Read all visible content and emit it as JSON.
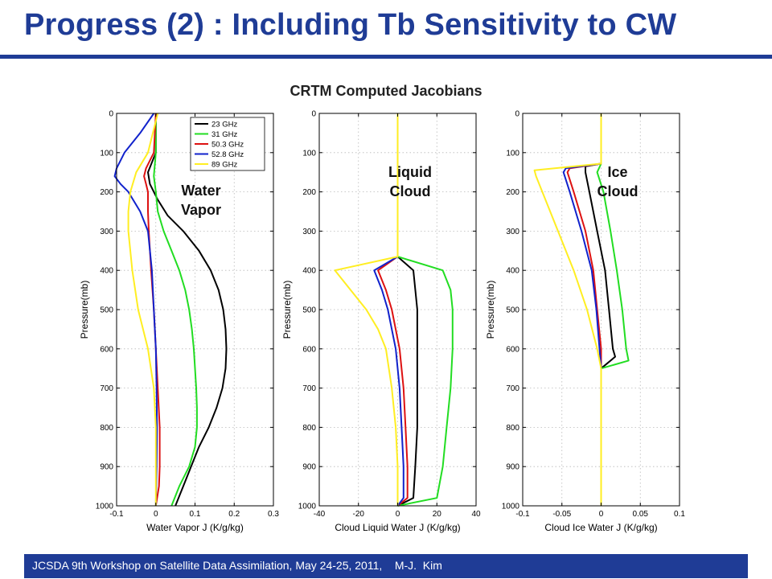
{
  "slide": {
    "title": "Progress (2) : Including Tb Sensitivity to CW",
    "figure_title": "CRTM Computed Jacobians",
    "footer": "JCSDA 9th Workshop on Satellite Data Assimilation, May 24-25, 2011,    M-J.  Kim"
  },
  "series_colors": {
    "23 GHz": "#000000",
    "31 GHz": "#22dd22",
    "50.3 GHz": "#dd1111",
    "52.8 GHz": "#1122cc",
    "89 GHz": "#ffee22"
  },
  "chart_data": [
    {
      "type": "line",
      "annotation": "Water\nVapor",
      "xlabel": "Water Vapor J (K/g/kg)",
      "ylabel": "Pressure(mb)",
      "xlim": [
        -0.1,
        0.3
      ],
      "ylim": [
        1000,
        0
      ],
      "xticks": [
        -0.1,
        0,
        0.1,
        0.2,
        0.3
      ],
      "xtick_labels": [
        "-0.1",
        "0",
        "0.1",
        "0.2",
        "0.3"
      ],
      "yticks": [
        0,
        100,
        200,
        300,
        400,
        500,
        600,
        700,
        800,
        900,
        1000
      ],
      "grid": true,
      "legend": "top-right",
      "series": [
        {
          "name": "23 GHz",
          "y": [
            0,
            100,
            150,
            180,
            220,
            260,
            300,
            350,
            400,
            450,
            500,
            550,
            600,
            650,
            700,
            750,
            800,
            850,
            900,
            950,
            1000
          ],
          "x": [
            0.0,
            0.0,
            -0.02,
            -0.015,
            0.005,
            0.03,
            0.07,
            0.11,
            0.14,
            0.16,
            0.172,
            0.178,
            0.18,
            0.178,
            0.17,
            0.155,
            0.135,
            0.11,
            0.09,
            0.07,
            0.05
          ]
        },
        {
          "name": "31 GHz",
          "y": [
            0,
            100,
            160,
            200,
            250,
            300,
            350,
            400,
            450,
            500,
            550,
            600,
            650,
            700,
            750,
            800,
            850,
            900,
            950,
            1000
          ],
          "x": [
            0.0,
            0.0,
            -0.005,
            0.0,
            0.005,
            0.02,
            0.04,
            0.06,
            0.075,
            0.085,
            0.092,
            0.097,
            0.1,
            0.103,
            0.105,
            0.105,
            0.1,
            0.085,
            0.06,
            0.04
          ]
        },
        {
          "name": "50.3 GHz",
          "y": [
            0,
            100,
            140,
            160,
            180,
            200,
            250,
            300,
            400,
            500,
            600,
            700,
            800,
            900,
            950,
            1000
          ],
          "x": [
            0.0,
            -0.005,
            -0.025,
            -0.03,
            -0.025,
            -0.02,
            -0.02,
            -0.018,
            -0.012,
            -0.005,
            0.0,
            0.005,
            0.01,
            0.01,
            0.008,
            0.0
          ]
        },
        {
          "name": "52.8 GHz",
          "y": [
            0,
            50,
            100,
            140,
            160,
            180,
            200,
            250,
            300,
            400,
            500,
            600,
            700,
            800,
            900,
            1000
          ],
          "x": [
            -0.005,
            -0.04,
            -0.08,
            -0.1,
            -0.105,
            -0.09,
            -0.07,
            -0.04,
            -0.02,
            -0.01,
            -0.005,
            0.0,
            0.002,
            0.003,
            0.002,
            0.0
          ]
        },
        {
          "name": "89 GHz",
          "y": [
            0,
            100,
            150,
            200,
            250,
            300,
            400,
            500,
            600,
            700,
            800,
            900,
            1000
          ],
          "x": [
            0.005,
            -0.02,
            -0.05,
            -0.065,
            -0.07,
            -0.07,
            -0.06,
            -0.045,
            -0.02,
            -0.005,
            0.0,
            0.0,
            0.0
          ]
        }
      ],
      "legend_entries": [
        "23 GHz",
        "31 GHz",
        "50.3 GHz",
        "52.8 GHz",
        "89 GHz"
      ]
    },
    {
      "type": "line",
      "annotation": "Liquid\nCloud",
      "xlabel": "Cloud Liquid Water J (K/g/kg)",
      "ylabel": "Pressure(mb)",
      "xlim": [
        -40,
        40
      ],
      "ylim": [
        1000,
        0
      ],
      "xticks": [
        -40,
        -20,
        0,
        20,
        40
      ],
      "xtick_labels": [
        "-40",
        "-20",
        "0",
        "20",
        "40"
      ],
      "yticks": [
        0,
        100,
        200,
        300,
        400,
        500,
        600,
        700,
        800,
        900,
        1000
      ],
      "grid": true,
      "series": [
        {
          "name": "23 GHz",
          "y": [
            0,
            365,
            400,
            500,
            600,
            700,
            800,
            900,
            980,
            1000
          ],
          "x": [
            0,
            0,
            8,
            10,
            10,
            10,
            10,
            9,
            8,
            0
          ]
        },
        {
          "name": "31 GHz",
          "y": [
            0,
            365,
            400,
            450,
            500,
            600,
            700,
            800,
            900,
            980,
            1000
          ],
          "x": [
            0,
            0,
            23,
            27,
            28,
            28,
            27,
            25,
            23,
            20,
            0
          ]
        },
        {
          "name": "50.3 GHz",
          "y": [
            0,
            365,
            400,
            450,
            500,
            600,
            700,
            800,
            900,
            980,
            1000
          ],
          "x": [
            0,
            0,
            -10,
            -6,
            -3,
            1,
            3,
            4,
            5,
            5,
            0
          ]
        },
        {
          "name": "52.8 GHz",
          "y": [
            0,
            365,
            400,
            450,
            500,
            600,
            700,
            800,
            900,
            980,
            1000
          ],
          "x": [
            0,
            0,
            -12,
            -8,
            -5,
            -1,
            1,
            2,
            3,
            3,
            0
          ]
        },
        {
          "name": "89 GHz",
          "y": [
            0,
            365,
            400,
            450,
            500,
            550,
            600,
            700,
            800,
            900,
            980,
            1000
          ],
          "x": [
            0,
            0,
            -32,
            -24,
            -16,
            -10,
            -6,
            -3,
            -1,
            0,
            0,
            0
          ]
        }
      ]
    },
    {
      "type": "line",
      "annotation": "Ice\nCloud",
      "xlabel": "Cloud Ice Water J (K/g/kg)",
      "ylabel": "Pressure(mb)",
      "xlim": [
        -0.1,
        0.1
      ],
      "ylim": [
        1000,
        0
      ],
      "xticks": [
        -0.1,
        -0.05,
        0,
        0.05,
        0.1
      ],
      "xtick_labels": [
        "-0.1",
        "-0.05",
        "0",
        "0.05",
        "0.1"
      ],
      "yticks": [
        0,
        100,
        200,
        300,
        400,
        500,
        600,
        700,
        800,
        900,
        1000
      ],
      "grid": true,
      "series": [
        {
          "name": "23 GHz",
          "y": [
            0,
            128,
            135,
            150,
            200,
            300,
            400,
            500,
            600,
            620,
            650,
            1000
          ],
          "x": [
            0,
            0,
            -0.02,
            -0.02,
            -0.015,
            -0.005,
            0.005,
            0.01,
            0.015,
            0.018,
            0,
            0
          ]
        },
        {
          "name": "31 GHz",
          "y": [
            0,
            128,
            150,
            200,
            300,
            400,
            500,
            600,
            630,
            650,
            1000
          ],
          "x": [
            0,
            0,
            -0.005,
            0.003,
            0.012,
            0.02,
            0.027,
            0.032,
            0.035,
            0,
            0
          ]
        },
        {
          "name": "50.3 GHz",
          "y": [
            0,
            128,
            140,
            150,
            200,
            300,
            400,
            500,
            600,
            650,
            1000
          ],
          "x": [
            0,
            0,
            -0.04,
            -0.043,
            -0.035,
            -0.02,
            -0.01,
            -0.005,
            0,
            0,
            0
          ]
        },
        {
          "name": "52.8 GHz",
          "y": [
            0,
            128,
            140,
            150,
            200,
            300,
            400,
            500,
            600,
            650,
            1000
          ],
          "x": [
            0,
            0,
            -0.045,
            -0.048,
            -0.04,
            -0.025,
            -0.012,
            -0.006,
            -0.002,
            0,
            0
          ]
        },
        {
          "name": "89 GHz",
          "y": [
            0,
            128,
            145,
            160,
            200,
            300,
            400,
            500,
            600,
            650,
            1000
          ],
          "x": [
            0,
            0,
            -0.085,
            -0.083,
            -0.075,
            -0.055,
            -0.035,
            -0.018,
            -0.005,
            0,
            0
          ]
        }
      ]
    }
  ]
}
